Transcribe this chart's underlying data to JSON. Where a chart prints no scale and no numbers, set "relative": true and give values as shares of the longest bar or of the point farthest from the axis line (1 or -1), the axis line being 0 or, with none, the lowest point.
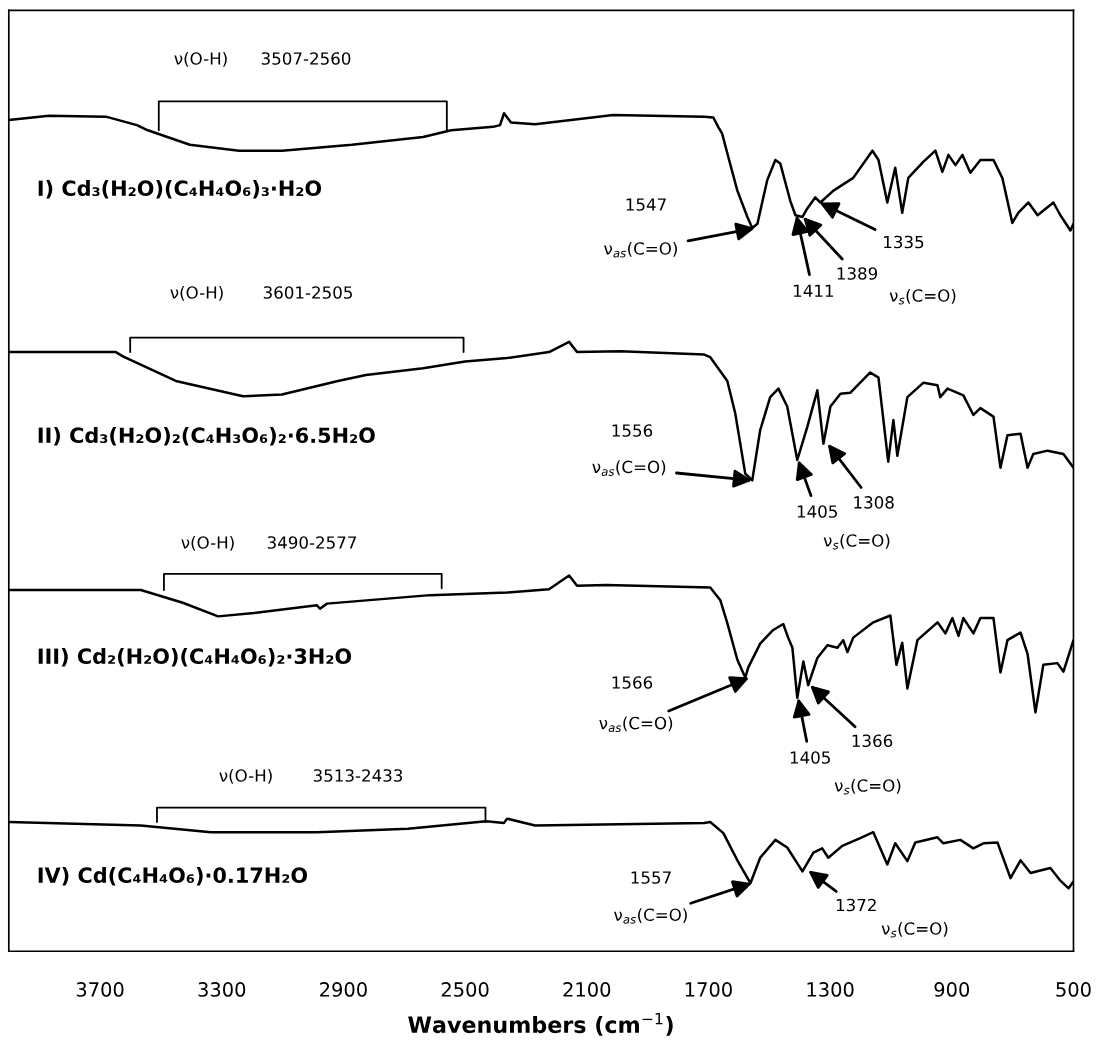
{
  "chart_data": {
    "type": "line",
    "relative": true,
    "xlabel": "Wavenumbers (cm$^{−1}$)",
    "xlim": [
      4000,
      500
    ],
    "xticks": [
      3700,
      3300,
      2900,
      2500,
      2100,
      1700,
      1300,
      900,
      500
    ],
    "tick_labels": "x",
    "series": [
      {
        "name": "I) Cd₃(H₂O)(C₄H₄O₆)₃·H₂O",
        "color": "#000000",
        "x": [
          4000,
          3868,
          3681,
          3579,
          3543,
          3405,
          3243,
          3102,
          2872,
          2638,
          2546,
          2408,
          2385,
          2372,
          2349,
          2270,
          2013,
          1714,
          1684,
          1668,
          1655,
          1638,
          1605,
          1572,
          1556,
          1539,
          1507,
          1480,
          1464,
          1431,
          1414,
          1391,
          1375,
          1349,
          1332,
          1289,
          1224,
          1161,
          1141,
          1112,
          1086,
          1063,
          1043,
          993,
          954,
          931,
          911,
          888,
          865,
          839,
          806,
          763,
          734,
          701,
          681,
          648,
          618,
          566,
          543,
          510,
          500
        ],
        "values": [
          0.978,
          0.983,
          0.982,
          0.972,
          0.966,
          0.949,
          0.942,
          0.942,
          0.949,
          0.958,
          0.966,
          0.97,
          0.972,
          0.986,
          0.975,
          0.973,
          0.984,
          0.982,
          0.981,
          0.97,
          0.962,
          0.939,
          0.895,
          0.864,
          0.851,
          0.856,
          0.907,
          0.931,
          0.927,
          0.883,
          0.866,
          0.864,
          0.874,
          0.887,
          0.881,
          0.895,
          0.91,
          0.942,
          0.931,
          0.881,
          0.922,
          0.869,
          0.91,
          0.929,
          0.942,
          0.917,
          0.937,
          0.925,
          0.937,
          0.916,
          0.931,
          0.931,
          0.91,
          0.857,
          0.869,
          0.881,
          0.866,
          0.881,
          0.866,
          0.848,
          0.856
        ]
      },
      {
        "name": "II) Cd₃(H₂O)₂(C₄H₃O₆)₂·6.5H₂O",
        "color": "#000000",
        "x": [
          4000,
          3648,
          3625,
          3451,
          3230,
          3102,
          2918,
          2826,
          2638,
          2500,
          2362,
          2224,
          2158,
          2132,
          1990,
          1714,
          1694,
          1638,
          1612,
          1579,
          1556,
          1530,
          1497,
          1470,
          1441,
          1408,
          1375,
          1342,
          1322,
          1299,
          1266,
          1234,
          1168,
          1141,
          1109,
          1092,
          1079,
          1046,
          993,
          947,
          938,
          914,
          862,
          829,
          806,
          763,
          740,
          717,
          674,
          651,
          632,
          585,
          533,
          500
        ],
        "values": [
          0.705,
          0.705,
          0.7,
          0.671,
          0.653,
          0.655,
          0.671,
          0.678,
          0.686,
          0.694,
          0.698,
          0.705,
          0.717,
          0.705,
          0.706,
          0.702,
          0.699,
          0.671,
          0.633,
          0.562,
          0.554,
          0.613,
          0.652,
          0.662,
          0.641,
          0.578,
          0.617,
          0.66,
          0.597,
          0.641,
          0.656,
          0.657,
          0.681,
          0.675,
          0.576,
          0.625,
          0.583,
          0.652,
          0.669,
          0.666,
          0.652,
          0.662,
          0.654,
          0.631,
          0.639,
          0.629,
          0.569,
          0.607,
          0.609,
          0.569,
          0.585,
          0.589,
          0.585,
          0.569
        ]
      },
      {
        "name": "III) Cd₂(H₂O)(C₄H₄O₆)₂·3H₂O",
        "color": "#000000",
        "x": [
          4000,
          3566,
          3428,
          3312,
          3194,
          2987,
          2977,
          2954,
          2615,
          2362,
          2224,
          2158,
          2132,
          2036,
          1694,
          1661,
          1638,
          1605,
          1579,
          1569,
          1530,
          1487,
          1454,
          1438,
          1424,
          1408,
          1388,
          1372,
          1342,
          1309,
          1276,
          1257,
          1243,
          1224,
          1158,
          1102,
          1082,
          1063,
          1046,
          1013,
          947,
          921,
          898,
          878,
          862,
          829,
          806,
          763,
          740,
          717,
          674,
          651,
          625,
          599,
          553,
          533,
          500
        ],
        "values": [
          0.425,
          0.425,
          0.41,
          0.394,
          0.398,
          0.407,
          0.403,
          0.409,
          0.419,
          0.422,
          0.426,
          0.442,
          0.43,
          0.431,
          0.428,
          0.413,
          0.386,
          0.343,
          0.322,
          0.334,
          0.362,
          0.378,
          0.385,
          0.369,
          0.357,
          0.298,
          0.341,
          0.313,
          0.345,
          0.36,
          0.357,
          0.366,
          0.352,
          0.369,
          0.387,
          0.395,
          0.337,
          0.363,
          0.309,
          0.366,
          0.387,
          0.374,
          0.392,
          0.371,
          0.392,
          0.374,
          0.392,
          0.392,
          0.328,
          0.366,
          0.375,
          0.35,
          0.281,
          0.337,
          0.339,
          0.329,
          0.366
        ]
      },
      {
        "name": "IV) Cd(C₄H₄O₆)·0.17H₂O",
        "color": "#000000",
        "x": [
          4000,
          3566,
          3336,
          2987,
          2688,
          2431,
          2372,
          2362,
          2270,
          1714,
          1694,
          1651,
          1605,
          1562,
          1530,
          1480,
          1441,
          1391,
          1355,
          1326,
          1306,
          1260,
          1201,
          1158,
          1112,
          1086,
          1046,
          1020,
          947,
          928,
          872,
          829,
          796,
          750,
          707,
          674,
          641,
          609,
          576,
          543,
          516,
          500
        ],
        "values": [
          0.152,
          0.148,
          0.14,
          0.14,
          0.144,
          0.153,
          0.151,
          0.156,
          0.148,
          0.151,
          0.152,
          0.139,
          0.107,
          0.08,
          0.11,
          0.131,
          0.122,
          0.094,
          0.116,
          0.121,
          0.11,
          0.124,
          0.133,
          0.14,
          0.102,
          0.127,
          0.106,
          0.128,
          0.134,
          0.127,
          0.131,
          0.121,
          0.127,
          0.128,
          0.086,
          0.107,
          0.092,
          0.095,
          0.098,
          0.083,
          0.074,
          0.082
        ]
      },
      {
        "color": "#000000",
        "x": [
          3507,
          3507,
          2560,
          2560
        ],
        "values": [
          0.966,
          1.0,
          1.0,
          0.966
        ]
      },
      {
        "color": "#000000",
        "x": [
          3601,
          3601,
          2505,
          2505
        ],
        "values": [
          0.705,
          0.722,
          0.722,
          0.705
        ]
      },
      {
        "color": "#000000",
        "x": [
          3490,
          3490,
          2577,
          2577
        ],
        "values": [
          0.425,
          0.444,
          0.444,
          0.427
        ]
      },
      {
        "color": "#000000",
        "x": [
          3513,
          3513,
          2433,
          2433
        ],
        "values": [
          0.152,
          0.169,
          0.169,
          0.152
        ]
      }
    ],
    "annotations": [
      "ν(O-H)",
      "3507-2560",
      "1547",
      {
        "text": "ν$_{as}$(C=O)",
        "x": 1547,
        "y": 0.851
      },
      {
        "text": "1411",
        "x": 1411,
        "y": 0.866
      },
      {
        "text": "1389",
        "x": 1389,
        "y": 0.864
      },
      {
        "text": "1335",
        "x": 1335,
        "y": 0.881
      },
      "ν$_{s}$(C=O)",
      "ν(O-H)",
      "3601-2505",
      "1556",
      {
        "text": "ν$_{as}$(C=O)",
        "x": 1556,
        "y": 0.554
      },
      {
        "text": "1405",
        "x": 1405,
        "y": 0.578
      },
      {
        "text": "1308",
        "x": 1308,
        "y": 0.597
      },
      "ν$_{s}$(C=O)",
      "ν(O-H)",
      "3490-2577",
      "1566",
      {
        "text": "ν$_{as}$(C=O)",
        "x": 1566,
        "y": 0.322
      },
      {
        "text": "1405",
        "x": 1405,
        "y": 0.298
      },
      {
        "text": "1366",
        "x": 1366,
        "y": 0.313
      },
      "ν$_{s}$(C=O)",
      "ν(O-H)",
      "3513-2433",
      "1557",
      {
        "text": "ν$_{as}$(C=O)",
        "x": 1557,
        "y": 0.08
      },
      {
        "text": "1372",
        "x": 1372,
        "y": 0.095
      },
      "ν$_{s}$(C=O)"
    ]
  }
}
